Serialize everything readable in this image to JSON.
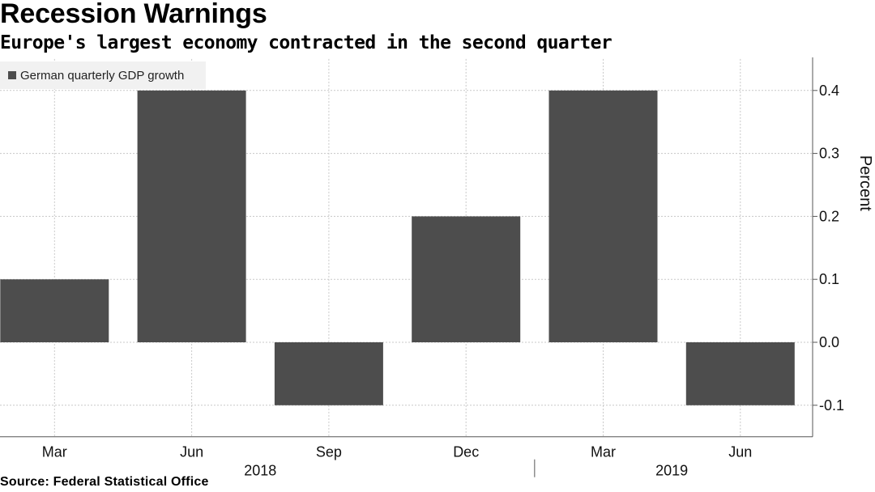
{
  "header": {
    "title": "Recession Warnings",
    "subtitle": "Europe's largest economy contracted in the second quarter"
  },
  "footer": {
    "source": "Source: Federal Statistical Office"
  },
  "colors": {
    "bar": "#4d4d4d",
    "grid": "#c8c8c8",
    "axis": "#555555",
    "legend_bg": "#f1f1f1"
  },
  "chart_data": {
    "type": "bar",
    "title": "Recession Warnings",
    "subtitle": "Europe's largest economy contracted in the second quarter",
    "categories": [
      "Mar",
      "Jun",
      "Sep",
      "Dec",
      "Mar",
      "Jun"
    ],
    "year_labels": [
      {
        "label": "2018",
        "categories": [
          "Mar",
          "Jun",
          "Sep",
          "Dec"
        ]
      },
      {
        "label": "2019",
        "categories": [
          "Mar",
          "Jun"
        ]
      }
    ],
    "series": [
      {
        "name": "German quarterly GDP growth",
        "values": [
          0.1,
          0.4,
          -0.1,
          0.2,
          0.4,
          -0.1
        ]
      }
    ],
    "xlabel": "",
    "ylabel": "Percent",
    "ylim": [
      -0.15,
      0.45
    ],
    "yticks": [
      -0.1,
      0.0,
      0.1,
      0.2,
      0.3,
      0.4
    ],
    "ytick_labels": [
      "-0.1",
      "0.0",
      "0.1",
      "0.2",
      "0.3",
      "0.4"
    ],
    "y_axis_side": "right",
    "grid": true,
    "legend_position": "top-left",
    "source": "Source: Federal Statistical Office"
  }
}
